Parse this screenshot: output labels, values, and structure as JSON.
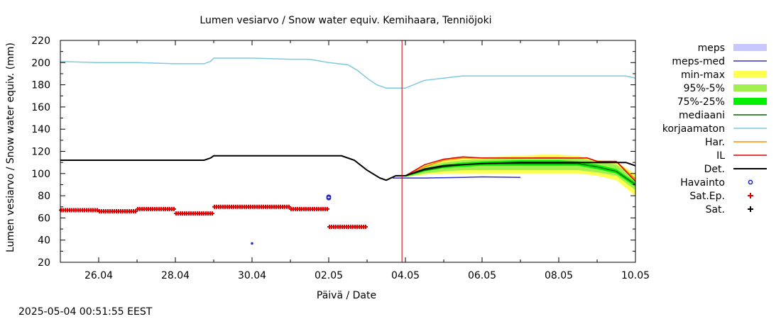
{
  "chart_data": {
    "type": "line",
    "title": "Lumen vesiarvo / Snow water equiv.  Kemihaara, Tenniöjoki",
    "xlabel": "Päivä / Date",
    "ylabel": "Lumen vesiarvo / Snow water equiv. (mm)",
    "ylim": [
      20,
      220
    ],
    "yticks": [
      20,
      40,
      60,
      80,
      100,
      120,
      140,
      160,
      180,
      200,
      220
    ],
    "xlim": [
      "2025-04-25",
      "2025-05-10"
    ],
    "xticks": [
      {
        "date": "2025-04-26",
        "label": "26.04"
      },
      {
        "date": "2025-04-28",
        "label": "28.04"
      },
      {
        "date": "2025-04-30",
        "label": "30.04"
      },
      {
        "date": "2025-05-02",
        "label": "02.05"
      },
      {
        "date": "2025-05-04",
        "label": "04.05"
      },
      {
        "date": "2025-05-06",
        "label": "06.05"
      },
      {
        "date": "2025-05-08",
        "label": "08.05"
      },
      {
        "date": "2025-05-10",
        "label": "10.05"
      }
    ],
    "current_time": "2025-05-03T21:51",
    "grid": false,
    "legend_position": "right",
    "colors": {
      "meps": "#c8c8ff",
      "meps_med": "#3030c8",
      "min_max": "#ffff50",
      "p95_5": "#a0f050",
      "p75_25": "#00f000",
      "mediaani": "#006400",
      "korjaamaton": "#7ec8e0",
      "har": "#ff8c00",
      "il": "#e00000",
      "det": "#000000",
      "havainto": "#2020c0",
      "sat_ep": "#e00000",
      "sat": "#000000",
      "now_line": "#cc0000"
    },
    "series": [
      {
        "key": "meps",
        "name": "meps",
        "kind": "band"
      },
      {
        "key": "meps_med",
        "name": "meps-med",
        "kind": "line",
        "points": [
          [
            "2025-05-03T16:00",
            96
          ],
          [
            "2025-05-04T12:00",
            96
          ],
          [
            "2025-05-05T12:00",
            96.5
          ],
          [
            "2025-05-06T00:00",
            97
          ],
          [
            "2025-05-07T00:00",
            96.5
          ]
        ]
      },
      {
        "key": "min_max",
        "name": "min-max",
        "kind": "band",
        "x": [
          "2025-05-04T00:00",
          "2025-05-04T12:00",
          "2025-05-05T00:00",
          "2025-05-05T12:00",
          "2025-05-06T00:00",
          "2025-05-07T00:00",
          "2025-05-07T12:00",
          "2025-05-08T00:00",
          "2025-05-08T12:00",
          "2025-05-09T00:00",
          "2025-05-09T12:00",
          "2025-05-10T00:00"
        ],
        "upper": [
          98,
          108,
          112,
          114,
          115,
          116,
          117,
          117,
          116,
          112,
          110,
          100
        ],
        "lower": [
          97,
          99,
          100,
          100,
          100,
          100,
          100,
          100,
          100,
          98,
          94,
          80
        ]
      },
      {
        "key": "p95_5",
        "name": "95%-5%",
        "kind": "band",
        "x": [
          "2025-05-04T00:00",
          "2025-05-04T12:00",
          "2025-05-05T00:00",
          "2025-05-05T12:00",
          "2025-05-06T00:00",
          "2025-05-07T00:00",
          "2025-05-07T12:00",
          "2025-05-08T00:00",
          "2025-05-08T12:00",
          "2025-05-09T00:00",
          "2025-05-09T12:00",
          "2025-05-10T00:00"
        ],
        "upper": [
          98,
          106,
          110,
          112,
          113,
          114,
          115,
          115,
          114,
          111,
          108,
          96
        ],
        "lower": [
          97,
          100,
          102,
          103,
          103,
          103,
          103,
          103,
          103,
          101,
          98,
          85
        ]
      },
      {
        "key": "p75_25",
        "name": "75%-25%",
        "kind": "band",
        "x": [
          "2025-05-04T00:00",
          "2025-05-04T12:00",
          "2025-05-05T00:00",
          "2025-05-05T12:00",
          "2025-05-06T00:00",
          "2025-05-07T00:00",
          "2025-05-07T12:00",
          "2025-05-08T00:00",
          "2025-05-08T12:00",
          "2025-05-09T00:00",
          "2025-05-09T12:00",
          "2025-05-10T00:00"
        ],
        "upper": [
          98,
          104,
          108,
          110,
          111,
          112,
          112,
          112,
          111,
          108,
          104,
          92
        ],
        "lower": [
          97,
          102,
          105,
          106,
          107,
          107,
          107,
          107,
          107,
          104,
          100,
          88
        ]
      },
      {
        "key": "mediaani",
        "name": "mediaani",
        "kind": "line",
        "points": [
          [
            "2025-05-04T00:00",
            98
          ],
          [
            "2025-05-04T12:00",
            103
          ],
          [
            "2025-05-05T00:00",
            106
          ],
          [
            "2025-05-05T12:00",
            108
          ],
          [
            "2025-05-06T00:00",
            109
          ],
          [
            "2025-05-07T00:00",
            109
          ],
          [
            "2025-05-08T00:00",
            109
          ],
          [
            "2025-05-08T12:00",
            109
          ],
          [
            "2025-05-09T00:00",
            106
          ],
          [
            "2025-05-09T12:00",
            102
          ],
          [
            "2025-05-10T00:00",
            90
          ]
        ]
      },
      {
        "key": "korjaamaton",
        "name": "korjaamaton",
        "kind": "line",
        "points": [
          [
            "2025-04-25T00:00",
            201
          ],
          [
            "2025-04-26T00:00",
            200
          ],
          [
            "2025-04-27T00:00",
            200
          ],
          [
            "2025-04-28T00:00",
            199
          ],
          [
            "2025-04-28T18:00",
            199
          ],
          [
            "2025-04-28T22:00",
            201
          ],
          [
            "2025-04-29T00:00",
            204
          ],
          [
            "2025-04-30T00:00",
            204
          ],
          [
            "2025-05-01T00:00",
            203
          ],
          [
            "2025-05-01T12:00",
            203
          ],
          [
            "2025-05-02T00:00",
            200
          ],
          [
            "2025-05-02T12:00",
            198
          ],
          [
            "2025-05-02T18:00",
            193
          ],
          [
            "2025-05-03T00:00",
            186
          ],
          [
            "2025-05-03T06:00",
            180
          ],
          [
            "2025-05-03T12:00",
            177
          ],
          [
            "2025-05-04T00:00",
            177
          ],
          [
            "2025-05-04T12:00",
            184
          ],
          [
            "2025-05-05T00:00",
            186
          ],
          [
            "2025-05-05T12:00",
            188
          ],
          [
            "2025-05-06T00:00",
            188
          ],
          [
            "2025-05-07T00:00",
            188
          ],
          [
            "2025-05-08T00:00",
            188
          ],
          [
            "2025-05-09T00:00",
            188
          ],
          [
            "2025-05-09T18:00",
            188
          ],
          [
            "2025-05-10T00:00",
            186
          ]
        ]
      },
      {
        "key": "har",
        "name": "Har.",
        "kind": "line",
        "points": [
          [
            "2025-05-03T18:00",
            98
          ],
          [
            "2025-05-04T00:00",
            98
          ],
          [
            "2025-05-04T12:00",
            106
          ],
          [
            "2025-05-05T00:00",
            112
          ],
          [
            "2025-05-05T12:00",
            114
          ],
          [
            "2025-05-06T00:00",
            114
          ],
          [
            "2025-05-07T00:00",
            114
          ],
          [
            "2025-05-08T00:00",
            114
          ],
          [
            "2025-05-08T18:00",
            114
          ],
          [
            "2025-05-09T00:00",
            111
          ],
          [
            "2025-05-09T12:00",
            111
          ],
          [
            "2025-05-10T00:00",
            95
          ]
        ]
      },
      {
        "key": "il",
        "name": "IL",
        "kind": "line",
        "points": [
          [
            "2025-05-03T18:00",
            98
          ],
          [
            "2025-05-04T00:00",
            98
          ],
          [
            "2025-05-04T12:00",
            108
          ],
          [
            "2025-05-05T00:00",
            113
          ],
          [
            "2025-05-05T12:00",
            115
          ],
          [
            "2025-05-06T00:00",
            114
          ],
          [
            "2025-05-07T00:00",
            114
          ],
          [
            "2025-05-08T00:00",
            114
          ],
          [
            "2025-05-08T18:00",
            114
          ],
          [
            "2025-05-09T00:00",
            111
          ],
          [
            "2025-05-09T12:00",
            111
          ],
          [
            "2025-05-10T00:00",
            93
          ]
        ]
      },
      {
        "key": "det",
        "name": "Det.",
        "kind": "line",
        "points": [
          [
            "2025-04-25T00:00",
            112
          ],
          [
            "2025-04-26T00:00",
            112
          ],
          [
            "2025-04-27T00:00",
            112
          ],
          [
            "2025-04-28T00:00",
            112
          ],
          [
            "2025-04-28T18:00",
            112
          ],
          [
            "2025-04-28T22:00",
            114
          ],
          [
            "2025-04-29T00:00",
            116
          ],
          [
            "2025-04-30T00:00",
            116
          ],
          [
            "2025-05-01T00:00",
            116
          ],
          [
            "2025-05-02T00:00",
            116
          ],
          [
            "2025-05-02T08:00",
            116
          ],
          [
            "2025-05-02T16:00",
            112
          ],
          [
            "2025-05-03T00:00",
            103
          ],
          [
            "2025-05-03T08:00",
            96
          ],
          [
            "2025-05-03T12:00",
            94
          ],
          [
            "2025-05-03T18:00",
            98
          ],
          [
            "2025-05-04T00:00",
            98
          ],
          [
            "2025-05-04T12:00",
            104
          ],
          [
            "2025-05-05T00:00",
            107
          ],
          [
            "2025-05-05T12:00",
            108
          ],
          [
            "2025-05-06T00:00",
            109
          ],
          [
            "2025-05-07T00:00",
            110
          ],
          [
            "2025-05-08T00:00",
            110
          ],
          [
            "2025-05-08T18:00",
            110
          ],
          [
            "2025-05-09T00:00",
            110
          ],
          [
            "2025-05-09T12:00",
            110
          ],
          [
            "2025-05-09T18:00",
            110
          ],
          [
            "2025-05-10T00:00",
            107
          ]
        ]
      },
      {
        "key": "havainto",
        "name": "Havainto",
        "kind": "points",
        "points": [
          [
            "2025-04-30T00:00",
            37
          ],
          [
            "2025-05-02T00:00",
            79
          ],
          [
            "2025-05-02T00:00",
            78
          ]
        ]
      },
      {
        "key": "sat_ep",
        "name": "Sat.Ep.",
        "kind": "points",
        "segments": [
          {
            "from": "2025-04-25T00:00",
            "to": "2025-04-26T00:00",
            "value": 67
          },
          {
            "from": "2025-04-26T00:00",
            "to": "2025-04-27T00:00",
            "value": 66
          },
          {
            "from": "2025-04-27T00:00",
            "to": "2025-04-28T00:00",
            "value": 68
          },
          {
            "from": "2025-04-28T00:00",
            "to": "2025-04-29T00:00",
            "value": 64
          },
          {
            "from": "2025-04-29T00:00",
            "to": "2025-05-01T00:00",
            "value": 70
          },
          {
            "from": "2025-05-01T00:00",
            "to": "2025-05-02T00:00",
            "value": 68
          },
          {
            "from": "2025-05-02T00:00",
            "to": "2025-05-03T00:00",
            "value": 52
          }
        ]
      },
      {
        "key": "sat",
        "name": "Sat.",
        "kind": "points"
      }
    ]
  },
  "footer": {
    "timestamp": "2025-05-04 00:51:55 EEST"
  }
}
